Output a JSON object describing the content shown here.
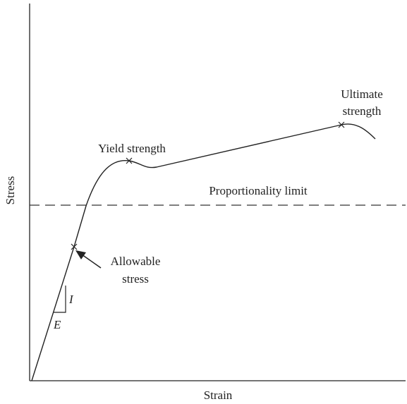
{
  "axes": {
    "y_label": "Stress",
    "x_label": "Strain"
  },
  "annotations": {
    "ultimate": [
      "Ultimate",
      "strength"
    ],
    "yield": "Yield strength",
    "proportionality": "Proportionality limit",
    "allowable": [
      "Allowable",
      "stress"
    ],
    "slope_rise": "I",
    "slope_run": "E"
  }
}
